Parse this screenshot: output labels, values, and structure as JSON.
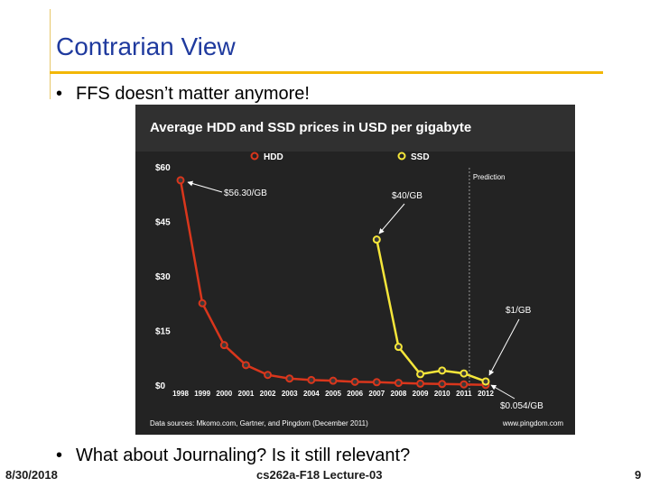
{
  "slide": {
    "title": "Contrarian View",
    "bullet_1": "FFS doesn’t matter anymore!",
    "bullet_2": "What about Journaling? Is it still relevant?",
    "bullet_symbol": "•",
    "footer_date": "8/30/2018",
    "footer_course": "cs262a-F18 Lecture-03",
    "footer_page": "9",
    "accent_color": "#f2b705",
    "title_color": "#1f3a9e"
  },
  "chart_data": {
    "type": "line",
    "title": "Average HDD and SSD prices in USD per gigabyte",
    "x_labels": [
      "1998",
      "1999",
      "2000",
      "2001",
      "2002",
      "2003",
      "2004",
      "2005",
      "2006",
      "2007",
      "2008",
      "2009",
      "2010",
      "2011",
      "2012"
    ],
    "y_ticks": [
      "$0",
      "$15",
      "$30",
      "$45",
      "$60"
    ],
    "ylim": [
      0,
      60
    ],
    "series": [
      {
        "name": "HDD",
        "color": "#d9361c",
        "x": [
          1998,
          1999,
          2000,
          2001,
          2002,
          2003,
          2004,
          2005,
          2006,
          2007,
          2008,
          2009,
          2010,
          2011,
          2012
        ],
        "values": [
          56.3,
          22.5,
          11,
          5.5,
          2.8,
          1.8,
          1.4,
          1.2,
          0.9,
          0.8,
          0.6,
          0.4,
          0.3,
          0.2,
          0.054
        ]
      },
      {
        "name": "SSD",
        "color": "#f5e63a",
        "x": [
          2007,
          2008,
          2009,
          2010,
          2011,
          2012
        ],
        "values": [
          40,
          10.5,
          3,
          4,
          3.2,
          1
        ]
      }
    ],
    "annotations": [
      "$56.30/GB",
      "$40/GB",
      "$1/GB",
      "$0.054/GB"
    ],
    "prediction_label": "Prediction",
    "prediction_start": 2011,
    "source_text": "Data sources: Mkomo.com, Gartner, and Pingdom (December 2011)",
    "site_text": "www.pingdom.com",
    "grid": false,
    "legend": "top"
  }
}
